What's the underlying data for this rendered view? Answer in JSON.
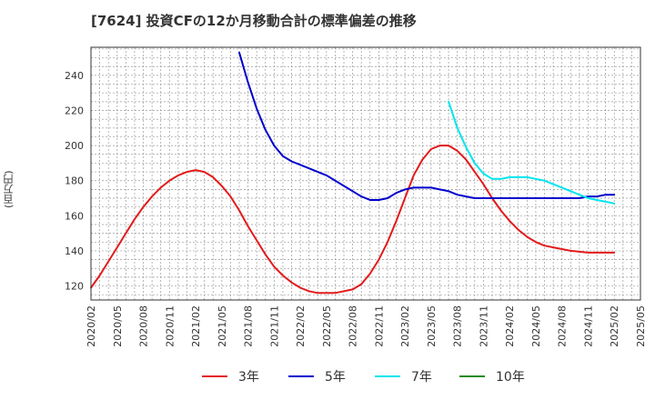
{
  "title": "[7624]  投資CFの12か月移動合計の標準偏差の推移",
  "chart_data": {
    "type": "line",
    "title": "[7624]  投資CFの12か月移動合計の標準偏差の推移",
    "xlabel": "",
    "ylabel": "(百万円)",
    "ylim": [
      112,
      256
    ],
    "yticks": [
      120,
      140,
      160,
      180,
      200,
      220,
      240
    ],
    "xticks": [
      "2020/02",
      "2020/05",
      "2020/08",
      "2020/11",
      "2021/02",
      "2021/05",
      "2021/08",
      "2021/11",
      "2022/02",
      "2022/05",
      "2022/08",
      "2022/11",
      "2023/02",
      "2023/05",
      "2023/08",
      "2023/11",
      "2024/02",
      "2024/05",
      "2024/08",
      "2024/11",
      "2025/02",
      "2025/05"
    ],
    "grid": true,
    "legend_position": "bottom",
    "series": [
      {
        "name": "3年",
        "color": "#e31a1c",
        "x": [
          "2020/02",
          "2020/03",
          "2020/04",
          "2020/05",
          "2020/06",
          "2020/07",
          "2020/08",
          "2020/09",
          "2020/10",
          "2020/11",
          "2020/12",
          "2021/01",
          "2021/02",
          "2021/03",
          "2021/04",
          "2021/05",
          "2021/06",
          "2021/07",
          "2021/08",
          "2021/09",
          "2021/10",
          "2021/11",
          "2021/12",
          "2022/01",
          "2022/02",
          "2022/03",
          "2022/04",
          "2022/05",
          "2022/06",
          "2022/07",
          "2022/08",
          "2022/09",
          "2022/10",
          "2022/11",
          "2022/12",
          "2023/01",
          "2023/02",
          "2023/03",
          "2023/04",
          "2023/05",
          "2023/06",
          "2023/07",
          "2023/08",
          "2023/09",
          "2023/10",
          "2023/11",
          "2023/12",
          "2024/01",
          "2024/02",
          "2024/03",
          "2024/04",
          "2024/05",
          "2024/06",
          "2024/07",
          "2024/08",
          "2024/09",
          "2024/10",
          "2024/11",
          "2024/12",
          "2025/01",
          "2025/02"
        ],
        "values": [
          119,
          126,
          134,
          142,
          150,
          158,
          165,
          171,
          176,
          180,
          183,
          185,
          186,
          185,
          182,
          177,
          171,
          163,
          154,
          146,
          138,
          131,
          126,
          122,
          119,
          117,
          116,
          116,
          116,
          117,
          118,
          121,
          127,
          135,
          145,
          157,
          170,
          183,
          192,
          198,
          200,
          200,
          197,
          192,
          185,
          178,
          170,
          163,
          157,
          152,
          148,
          145,
          143,
          142,
          141,
          140,
          139.5,
          139,
          139,
          139,
          139
        ]
      },
      {
        "name": "5年",
        "color": "#0000cd",
        "x": [
          "2021/07",
          "2021/08",
          "2021/09",
          "2021/10",
          "2021/11",
          "2021/12",
          "2022/01",
          "2022/02",
          "2022/03",
          "2022/04",
          "2022/05",
          "2022/06",
          "2022/07",
          "2022/08",
          "2022/09",
          "2022/10",
          "2022/11",
          "2022/12",
          "2023/01",
          "2023/02",
          "2023/03",
          "2023/04",
          "2023/05",
          "2023/06",
          "2023/07",
          "2023/08",
          "2023/09",
          "2023/10",
          "2023/11",
          "2023/12",
          "2024/01",
          "2024/02",
          "2024/03",
          "2024/04",
          "2024/05",
          "2024/06",
          "2024/07",
          "2024/08",
          "2024/09",
          "2024/10",
          "2024/11",
          "2024/12",
          "2025/01",
          "2025/02"
        ],
        "values": [
          253,
          236,
          221,
          209,
          200,
          194,
          191,
          189,
          187,
          185,
          183,
          180,
          177,
          174,
          171,
          169,
          169,
          170,
          173,
          175,
          176,
          176,
          176,
          175,
          174,
          172,
          171,
          170,
          170,
          170,
          170,
          170,
          170,
          170,
          170,
          170,
          170,
          170,
          170,
          170,
          171,
          171,
          172,
          172
        ]
      },
      {
        "name": "7年",
        "color": "#00e5ee",
        "x": [
          "2023/07",
          "2023/08",
          "2023/09",
          "2023/10",
          "2023/11",
          "2023/12",
          "2024/01",
          "2024/02",
          "2024/03",
          "2024/04",
          "2024/05",
          "2024/06",
          "2024/07",
          "2024/08",
          "2024/09",
          "2024/10",
          "2024/11",
          "2024/12",
          "2025/01",
          "2025/02"
        ],
        "values": [
          225,
          210,
          199,
          190,
          184,
          181,
          181,
          182,
          182,
          182,
          181,
          180,
          178,
          176,
          174,
          172,
          170,
          169,
          168,
          167
        ]
      },
      {
        "name": "10年",
        "color": "#228b22",
        "x": [],
        "values": []
      }
    ]
  }
}
